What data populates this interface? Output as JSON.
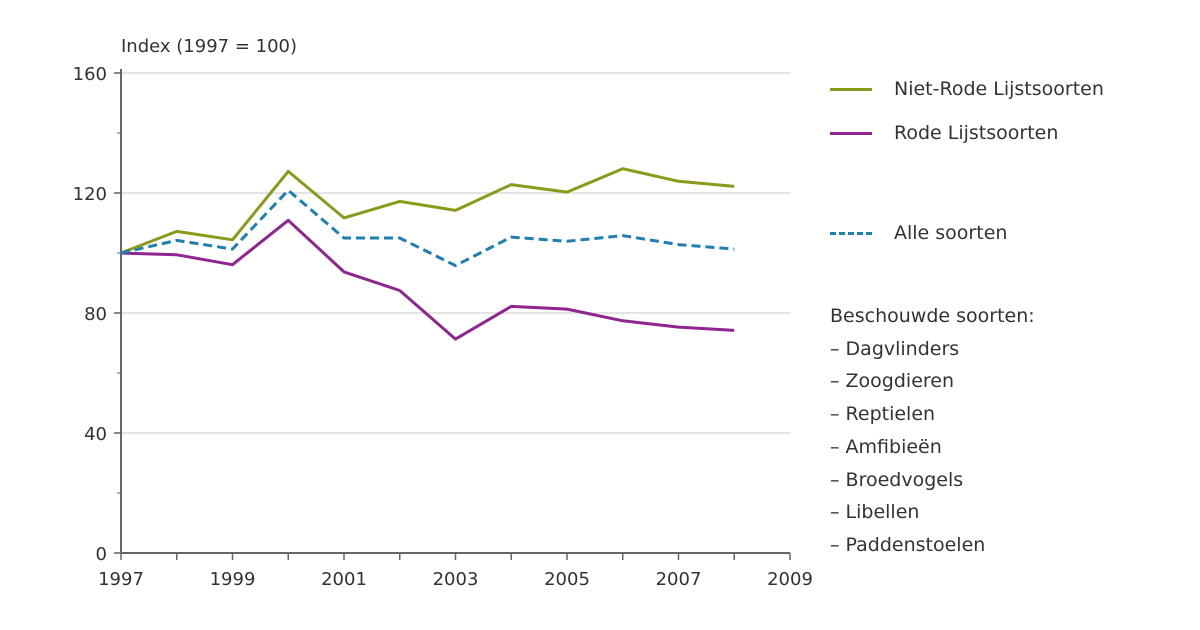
{
  "chart_data": {
    "type": "line",
    "title": "",
    "ylabel": "Index (1997 = 100)",
    "xlabel": "",
    "x": [
      1997,
      1998,
      1999,
      2000,
      2001,
      2002,
      2003,
      2004,
      2005,
      2006,
      2007,
      2008
    ],
    "xlim": [
      1997,
      2009
    ],
    "ylim": [
      0,
      160
    ],
    "xticks": [
      "1997",
      "1999",
      "2001",
      "2003",
      "2005",
      "2007",
      "2009"
    ],
    "yticks": [
      "0",
      "40",
      "80",
      "120",
      "160"
    ],
    "grid": true,
    "legend_position": "right",
    "series": [
      {
        "name": "Niet-Rode Lijstsoorten",
        "color": "#8a9a1a",
        "dash": false,
        "values": [
          100,
          107.2,
          104.4,
          127.2,
          111.7,
          117.2,
          114.2,
          122.8,
          120.3,
          128.1,
          123.9,
          122.2
        ]
      },
      {
        "name": "Rode Lijstsoorten",
        "color": "#8e2590",
        "dash": false,
        "values": [
          100,
          99.4,
          96.1,
          110.9,
          93.7,
          87.5,
          71.3,
          82.2,
          81.3,
          77.4,
          75.3,
          74.2
        ]
      },
      {
        "name": "Alle soorten",
        "color": "#1f7fb0",
        "dash": true,
        "values": [
          100,
          104.2,
          101.3,
          120.9,
          105,
          105,
          95.8,
          105.3,
          103.9,
          105.8,
          102.8,
          101.3
        ]
      }
    ],
    "species_heading": "Beschouwde soorten:",
    "species": [
      "– Dagvlinders",
      "– Zoogdieren",
      "– Reptielen",
      "– Amfibieën",
      "– Broedvogels",
      "– Libellen",
      "– Paddenstoelen"
    ]
  }
}
